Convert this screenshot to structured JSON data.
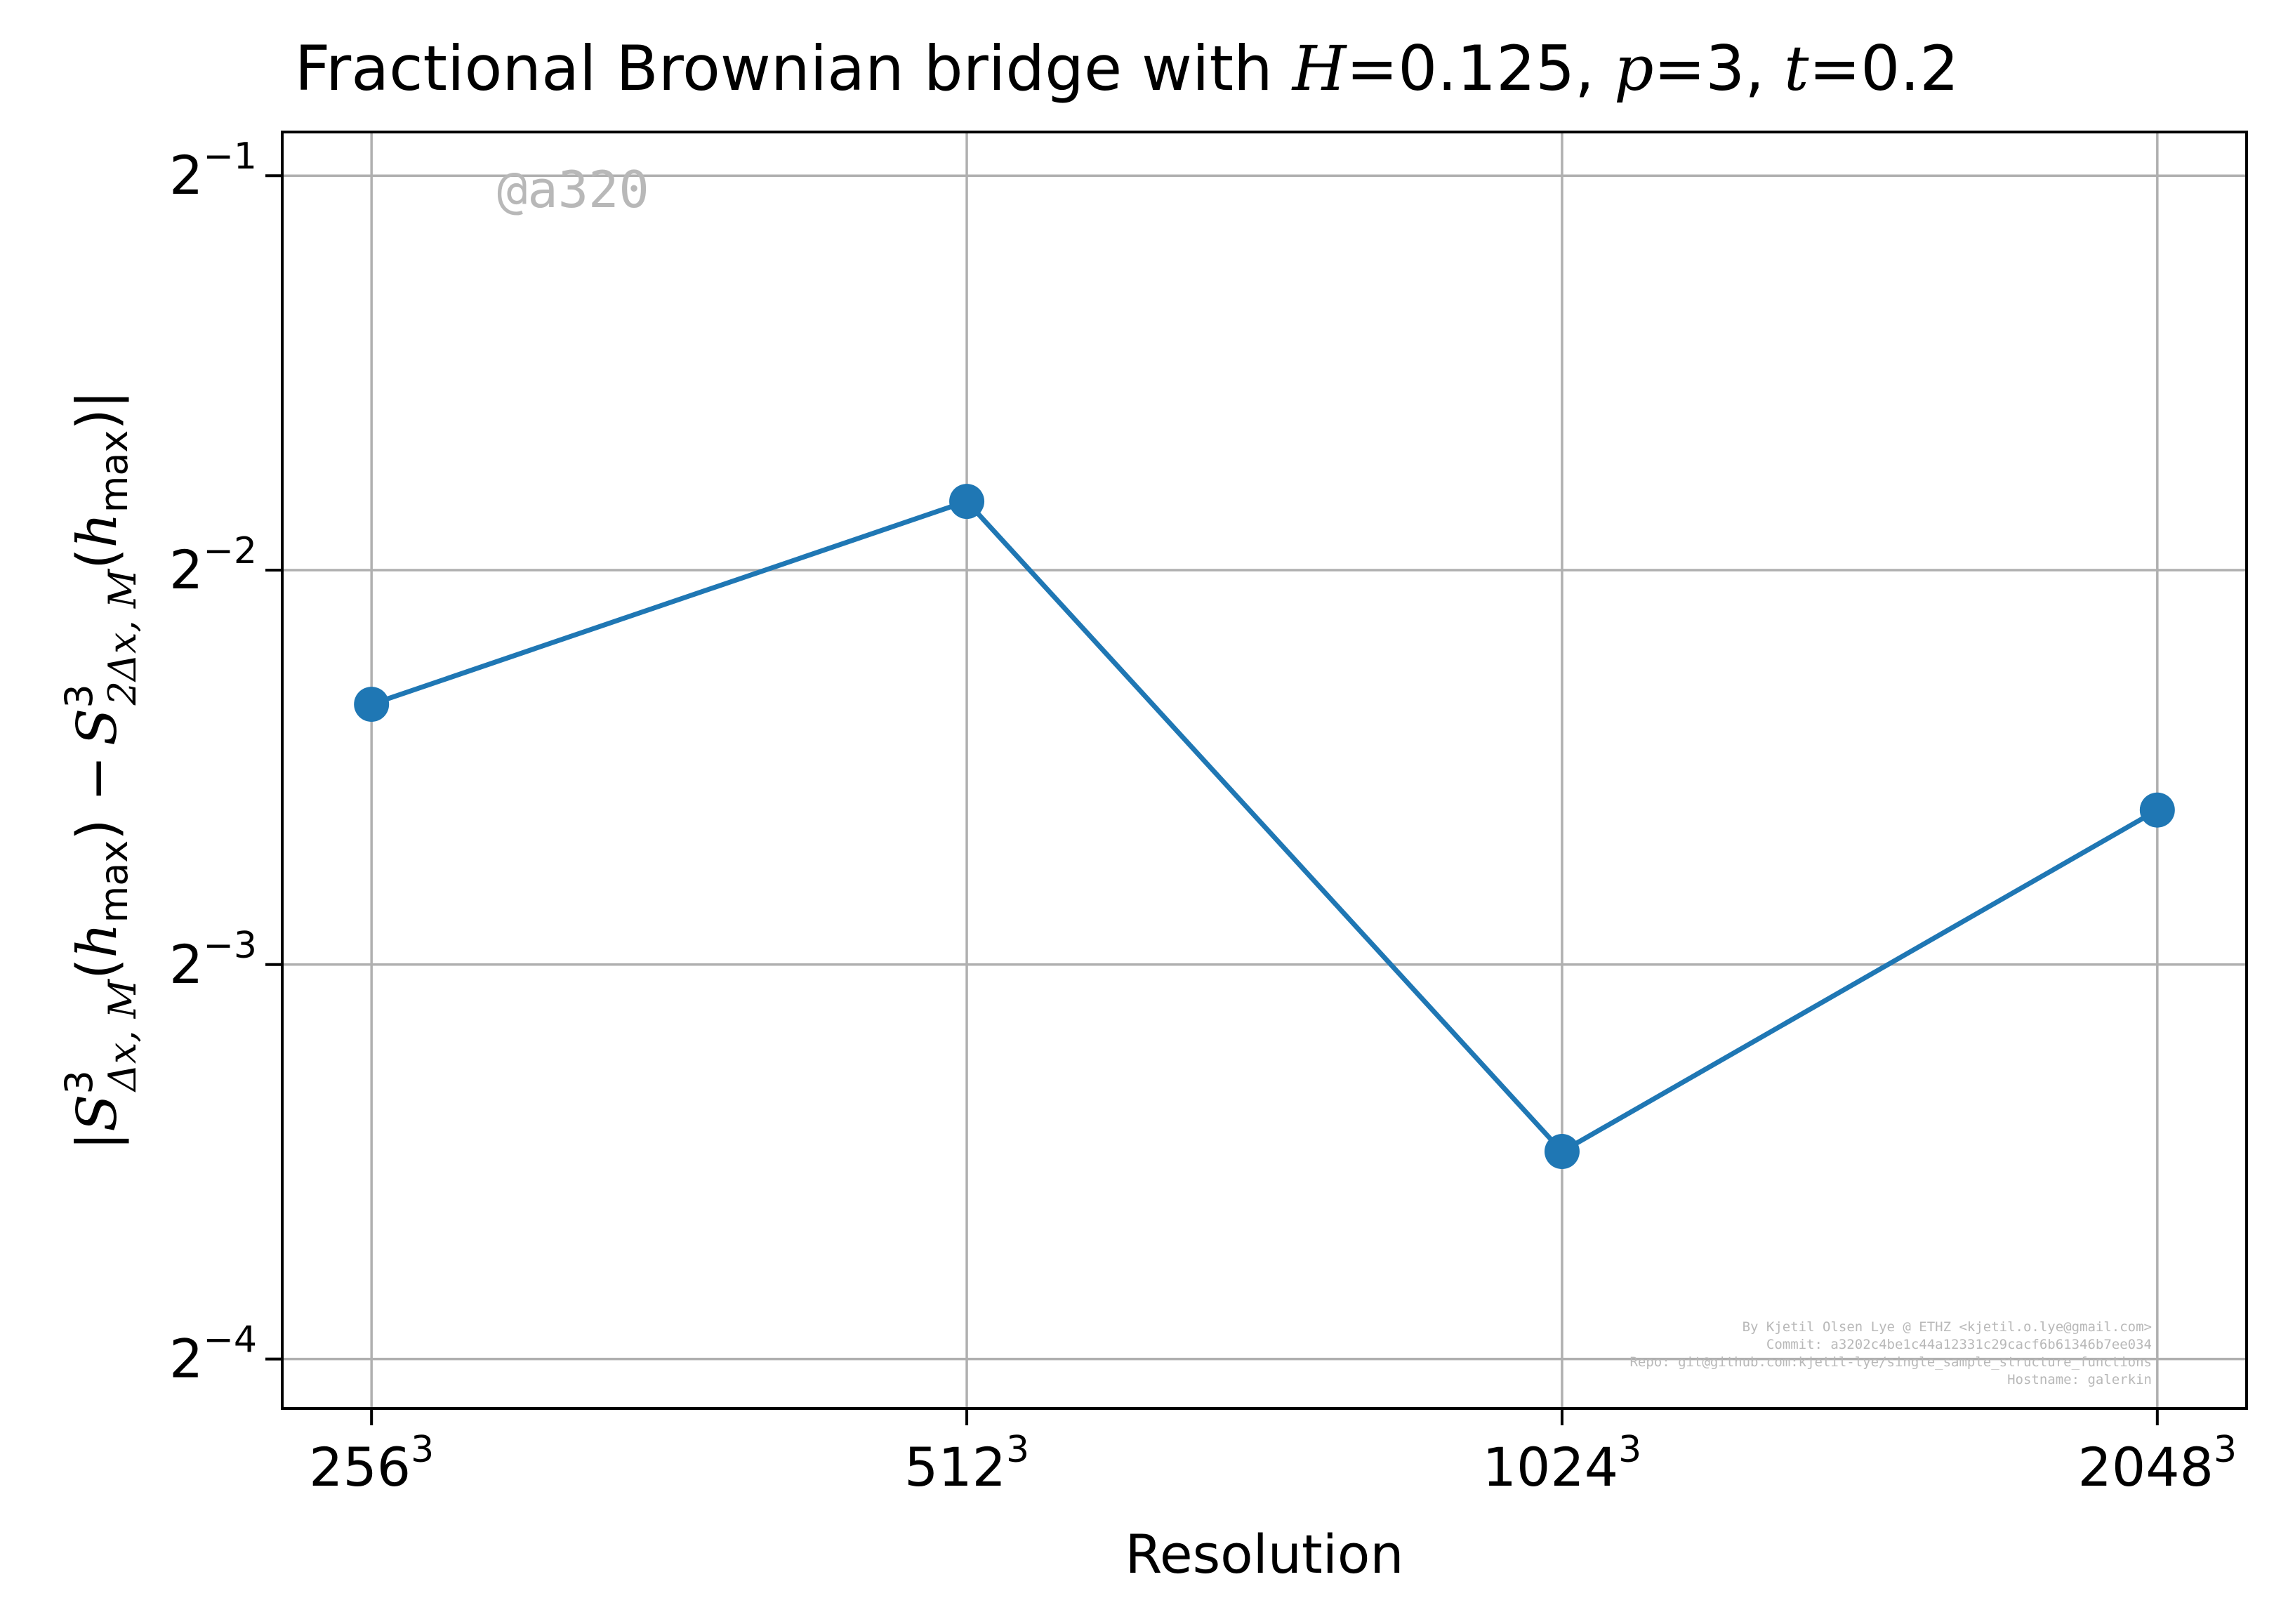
{
  "chart_data": {
    "type": "line",
    "title": {
      "prefix": "Fractional Brownian bridge with ",
      "H_symbol": "H",
      "H_value": "0.125",
      "p_symbol": "p",
      "p_value": "3",
      "t_symbol": "t",
      "t_value": "0.2"
    },
    "xlabel": "Resolution",
    "ylabel": {
      "bar": "|",
      "S": "S",
      "sup": "3",
      "sub1": "Δx, M",
      "sub2": "2Δx, M",
      "h": "h",
      "hsub": "max",
      "minus": "−"
    },
    "categories": [
      "256",
      "512",
      "1024",
      "2048"
    ],
    "category_exponent": "3",
    "x": [
      256,
      512,
      1024,
      2048
    ],
    "values": [
      0.1975,
      0.2821,
      0.09,
      0.164
    ],
    "y_scale": "log2",
    "ylim": [
      0.0573,
      0.5399
    ],
    "y_ticks": [
      {
        "base": "2",
        "exp": "−1",
        "value": 0.5
      },
      {
        "base": "2",
        "exp": "−2",
        "value": 0.25
      },
      {
        "base": "2",
        "exp": "−3",
        "value": 0.125
      },
      {
        "base": "2",
        "exp": "−4",
        "value": 0.0625
      }
    ],
    "grid": true,
    "line_color": "#1f77b4",
    "grid_color": "#b0b0b0"
  },
  "annotations": {
    "watermark": "@a320",
    "credits": [
      "By Kjetil Olsen Lye @ ETHZ <kjetil.o.lye@gmail.com>",
      "Commit: a3202c4be1c44a12331c29cacf6b61346b7ee034",
      "Repo: git@github.com:kjetil-lye/single_sample_structure_functions",
      "Hostname: galerkin"
    ]
  }
}
